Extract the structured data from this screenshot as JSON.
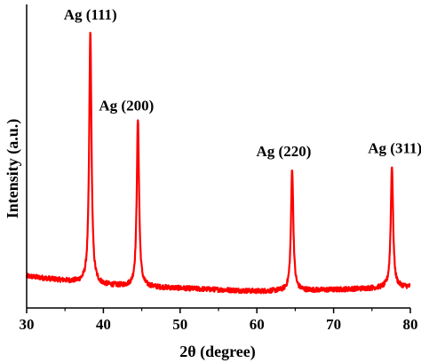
{
  "chart_data": {
    "type": "line",
    "title": "",
    "xlabel": "2θ (degree)",
    "ylabel": "Intensity (a.u.)",
    "xlim": [
      30,
      80
    ],
    "ylim": [
      0,
      100
    ],
    "xticks": [
      30,
      40,
      50,
      60,
      70,
      80
    ],
    "yticks_shown": false,
    "grid": false,
    "legend": "none",
    "series": [
      {
        "color": "#ff0000",
        "baseline": [
          [
            30,
            10.5
          ],
          [
            35,
            9.0
          ],
          [
            40,
            7.5
          ],
          [
            50,
            6.5
          ],
          [
            60,
            5.5
          ],
          [
            70,
            6.0
          ],
          [
            80,
            7.0
          ]
        ],
        "peaks": [
          {
            "x": 38.3,
            "y": 91
          },
          {
            "x": 44.5,
            "y": 62
          },
          {
            "x": 64.6,
            "y": 46
          },
          {
            "x": 77.6,
            "y": 47
          }
        ]
      }
    ],
    "annotations": [
      {
        "text": "Ag (111)",
        "x": 38.3,
        "y": 95
      },
      {
        "text": "Ag (200)",
        "x": 43.0,
        "y": 65
      },
      {
        "text": "Ag (220)",
        "x": 63.5,
        "y": 50
      },
      {
        "text": "Ag (311)",
        "x": 78.0,
        "y": 51
      }
    ]
  }
}
